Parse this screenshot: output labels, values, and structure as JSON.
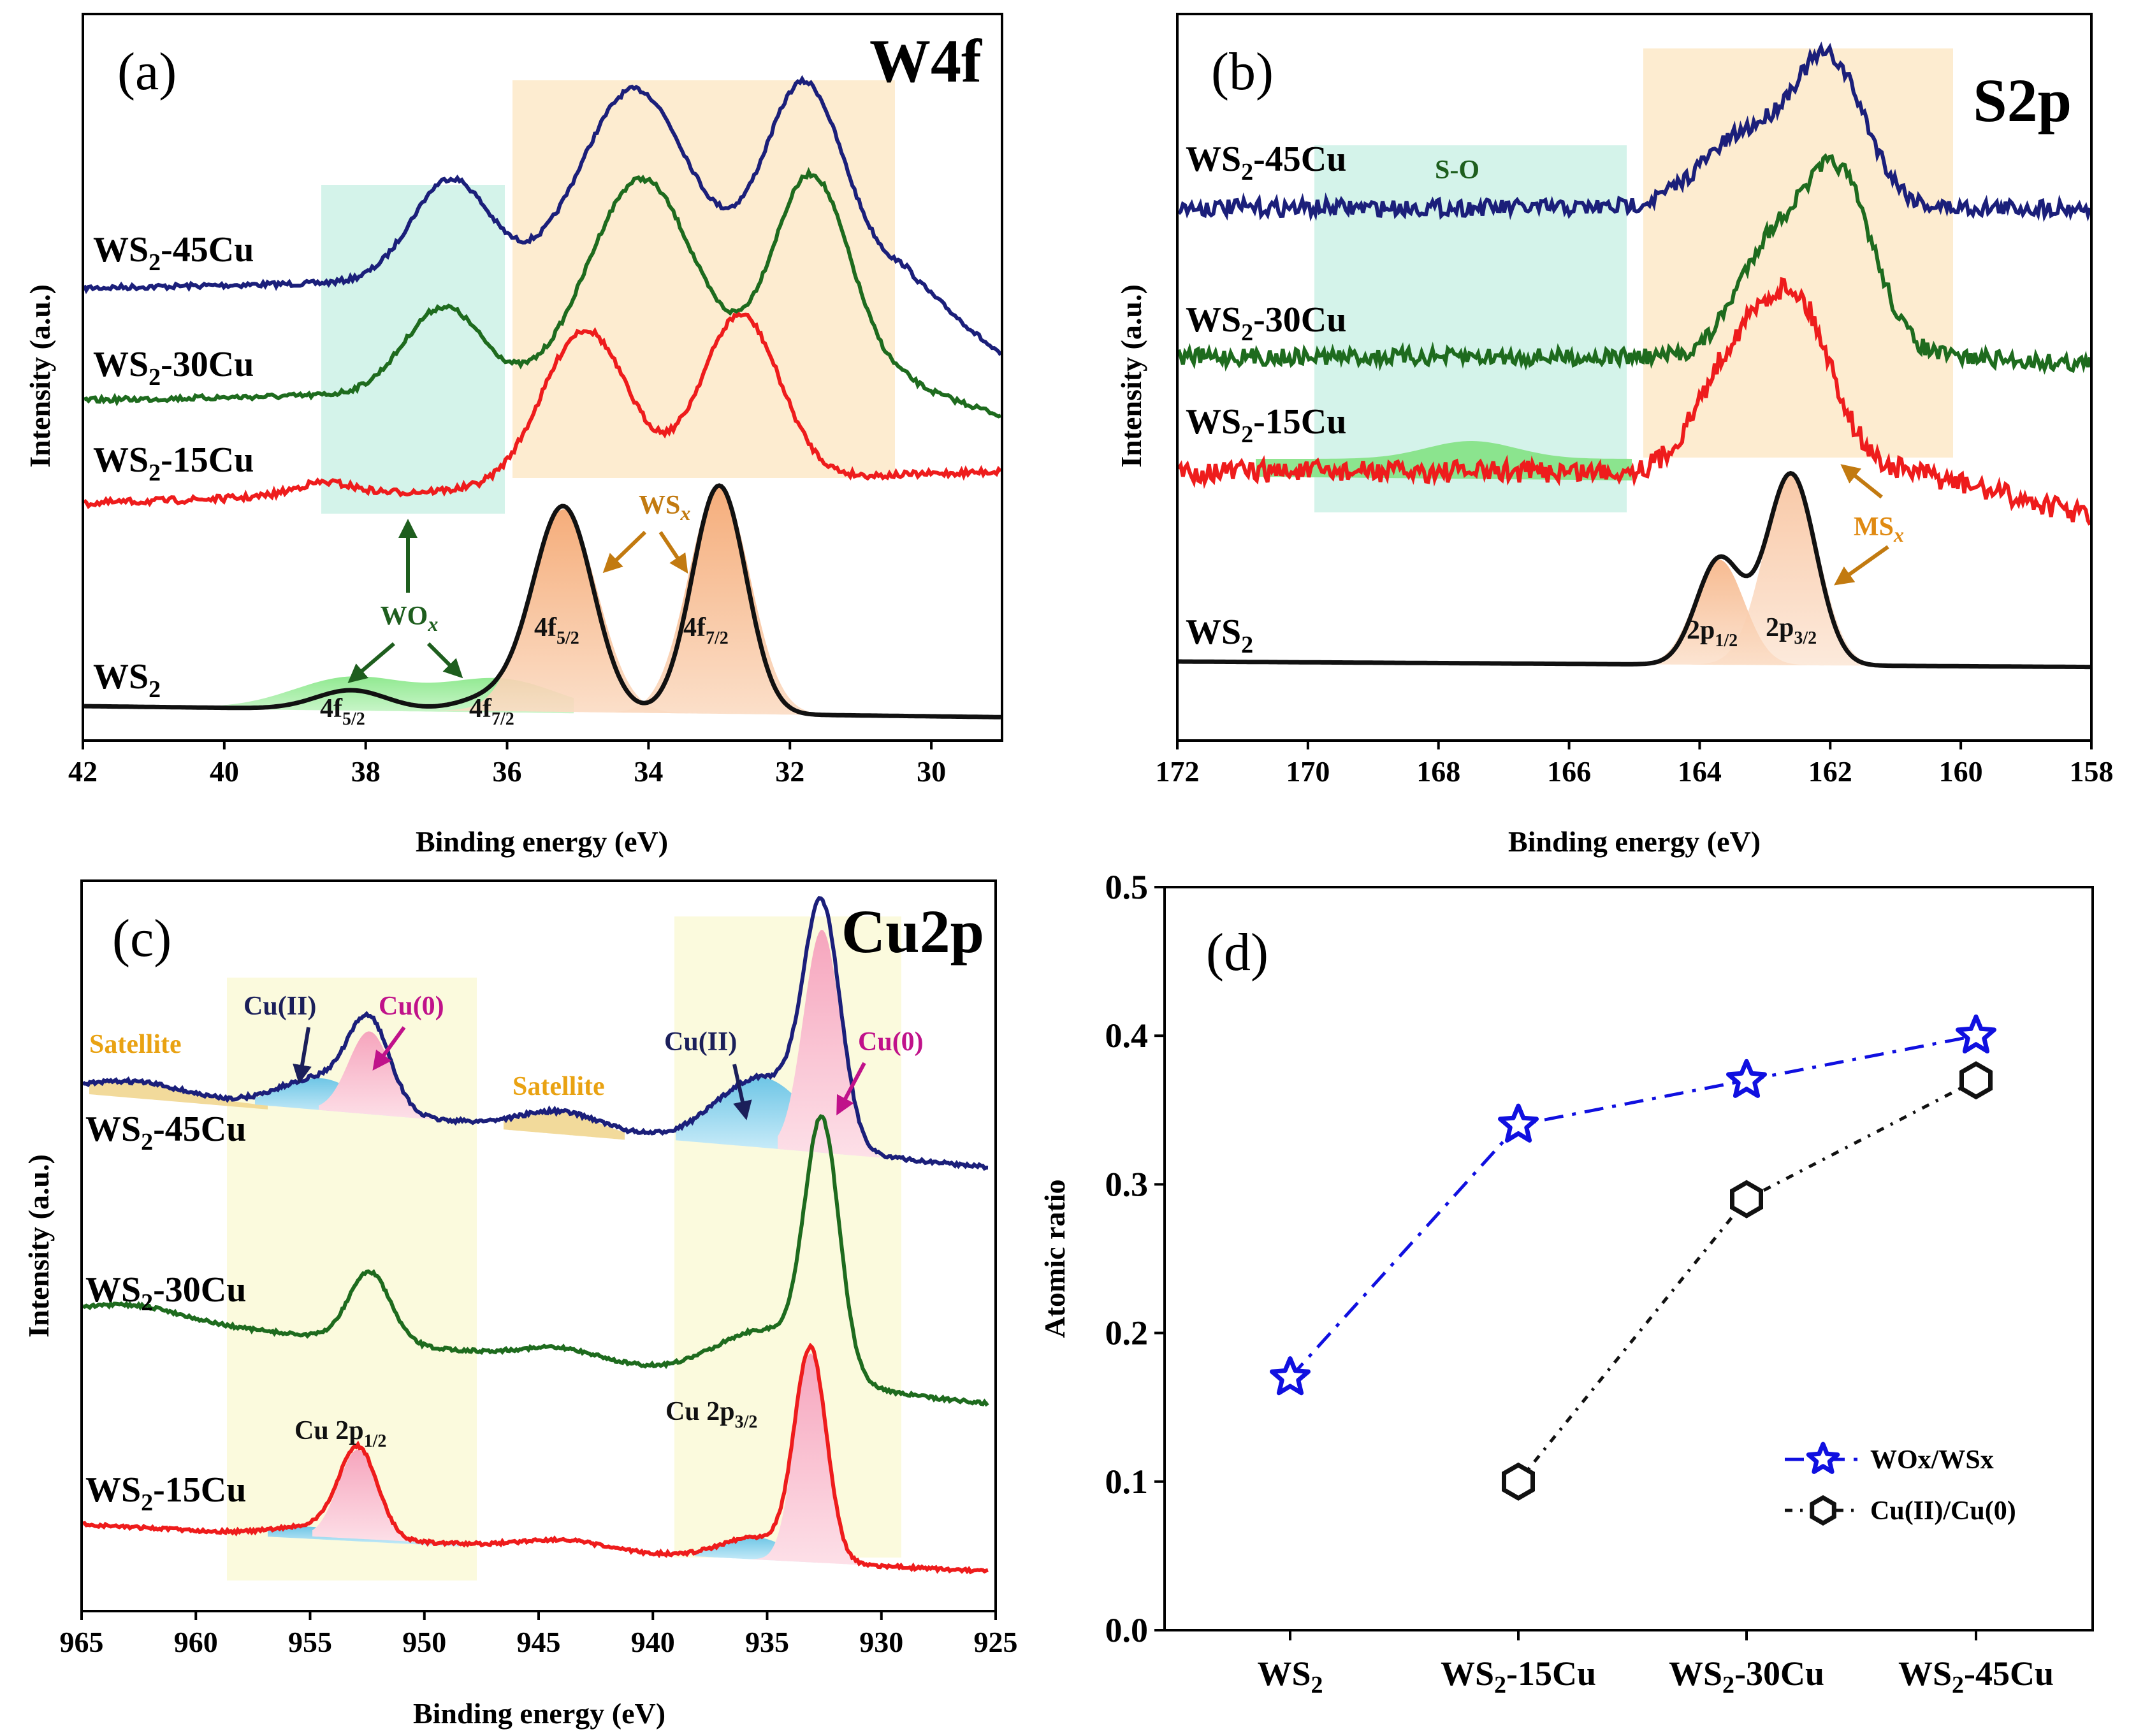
{
  "colors": {
    "ws2_45cu": "#1b1f7a",
    "ws2_30cu": "#1e6b1e",
    "ws2_15cu": "#ee1c1c",
    "ws2": "#111111",
    "wox_fill": "#7ee07e",
    "wsx_fill": "#f6b78a",
    "cu2_fill": "#7fcde8",
    "cu0_fill": "#f5b8c8",
    "sat_fill": "#f0d48a",
    "band_mint": "#d4f3ea",
    "band_peach": "#fdecd0",
    "band_yellow": "#fbfadd",
    "arrow_orange": "#c27a10",
    "arrow_green": "#1e5e1e",
    "arrow_navy": "#1b1f5a",
    "arrow_magenta": "#c0128a",
    "label_orange": "#e9a212",
    "series_blue": "#1010e0",
    "series_black": "#111111"
  },
  "chart_data": [
    {
      "panel": "(a)",
      "title": "W4f",
      "type": "line",
      "xlabel": "Binding energy (eV)",
      "ylabel": "Intensity (a.u.)",
      "xlim": [
        42,
        29
      ],
      "xticks": [
        "42",
        "40",
        "38",
        "36",
        "34",
        "32",
        "30"
      ],
      "series": [
        {
          "name": "WS2-45Cu",
          "sub": "2",
          "pre": "WS",
          "post": "-45Cu",
          "peaks_eV": [
            36.8,
            34.2,
            31.8
          ]
        },
        {
          "name": "WS2-30Cu",
          "sub": "2",
          "pre": "WS",
          "post": "-30Cu",
          "peaks_eV": [
            36.9,
            34.1,
            31.7
          ]
        },
        {
          "name": "WS2-15Cu",
          "sub": "2",
          "pre": "WS",
          "post": "-15Cu",
          "peaks_eV": [
            35.0,
            32.7
          ]
        },
        {
          "name": "WS2",
          "sub": "2",
          "pre": "WS",
          "post": "",
          "peaks_eV": [
            38.2,
            35.2,
            33.0
          ]
        }
      ],
      "annotations": {
        "wox": "WOx",
        "wsx": "WSx",
        "f52": "4f5/2",
        "f72": "4f7/2"
      }
    },
    {
      "panel": "(b)",
      "title": "S2p",
      "type": "line",
      "xlabel": "Binding energy (eV)",
      "ylabel": "Intensity (a.u.)",
      "xlim": [
        172,
        158
      ],
      "xticks": [
        "172",
        "170",
        "168",
        "166",
        "164",
        "162",
        "160",
        "158"
      ],
      "series": [
        {
          "name": "WS2-45Cu",
          "sub": "2",
          "pre": "WS",
          "post": "-45Cu",
          "peaks_eV": [
            162.0
          ]
        },
        {
          "name": "WS2-30Cu",
          "sub": "2",
          "pre": "WS",
          "post": "-30Cu",
          "peaks_eV": [
            161.9
          ]
        },
        {
          "name": "WS2-15Cu",
          "sub": "2",
          "pre": "WS",
          "post": "-15Cu",
          "peaks_eV": [
            162.5
          ]
        },
        {
          "name": "WS2",
          "sub": "2",
          "pre": "WS",
          "post": "",
          "peaks_eV": [
            163.7,
            162.6
          ]
        }
      ],
      "annotations": {
        "so": "S-O",
        "msx": "MSx",
        "p12": "2p1/2",
        "p32": "2p3/2"
      }
    },
    {
      "panel": "(c)",
      "title": "Cu2p",
      "type": "line",
      "xlabel": "Binding energy (eV)",
      "ylabel": "Intensity (a.u.)",
      "xlim": [
        965,
        925
      ],
      "xticks": [
        "965",
        "960",
        "955",
        "950",
        "945",
        "940",
        "935",
        "930",
        "925"
      ],
      "series": [
        {
          "name": "WS2-45Cu",
          "sub": "2",
          "pre": "WS",
          "post": "-45Cu",
          "peaks_eV": [
            952.4,
            932.6
          ]
        },
        {
          "name": "WS2-30Cu",
          "sub": "2",
          "pre": "WS",
          "post": "-30Cu",
          "peaks_eV": [
            952.4,
            932.6
          ]
        },
        {
          "name": "WS2-15Cu",
          "sub": "2",
          "pre": "WS",
          "post": "-15Cu",
          "peaks_eV": [
            952.9,
            933.1
          ]
        }
      ],
      "annotations": {
        "satellite": "Satellite",
        "cu2": "Cu(II)",
        "cu0": "Cu(0)",
        "cu2p12": "Cu 2p1/2",
        "cu2p32": "Cu 2p3/2"
      }
    },
    {
      "panel": "(d)",
      "type": "line",
      "xlabel": "",
      "ylabel": "Atomic ratio",
      "ylim": [
        0.0,
        0.5
      ],
      "yticks": [
        "0.0",
        "0.1",
        "0.2",
        "0.3",
        "0.4",
        "0.5"
      ],
      "categories": [
        "WS2",
        "WS2-15Cu",
        "WS2-30Cu",
        "WS2-45Cu"
      ],
      "category_parts": [
        {
          "pre": "WS",
          "sub": "2",
          "post": ""
        },
        {
          "pre": "WS",
          "sub": "2",
          "post": "-15Cu"
        },
        {
          "pre": "WS",
          "sub": "2",
          "post": "-30Cu"
        },
        {
          "pre": "WS",
          "sub": "2",
          "post": "-45Cu"
        }
      ],
      "series": [
        {
          "name": "WOx/WSx",
          "marker": "star",
          "values": [
            0.17,
            0.34,
            0.37,
            0.4
          ]
        },
        {
          "name": "Cu(II)/Cu(0)",
          "marker": "hexagon",
          "values": [
            null,
            0.1,
            0.29,
            0.37
          ]
        }
      ],
      "legend": "bottom-right"
    }
  ]
}
